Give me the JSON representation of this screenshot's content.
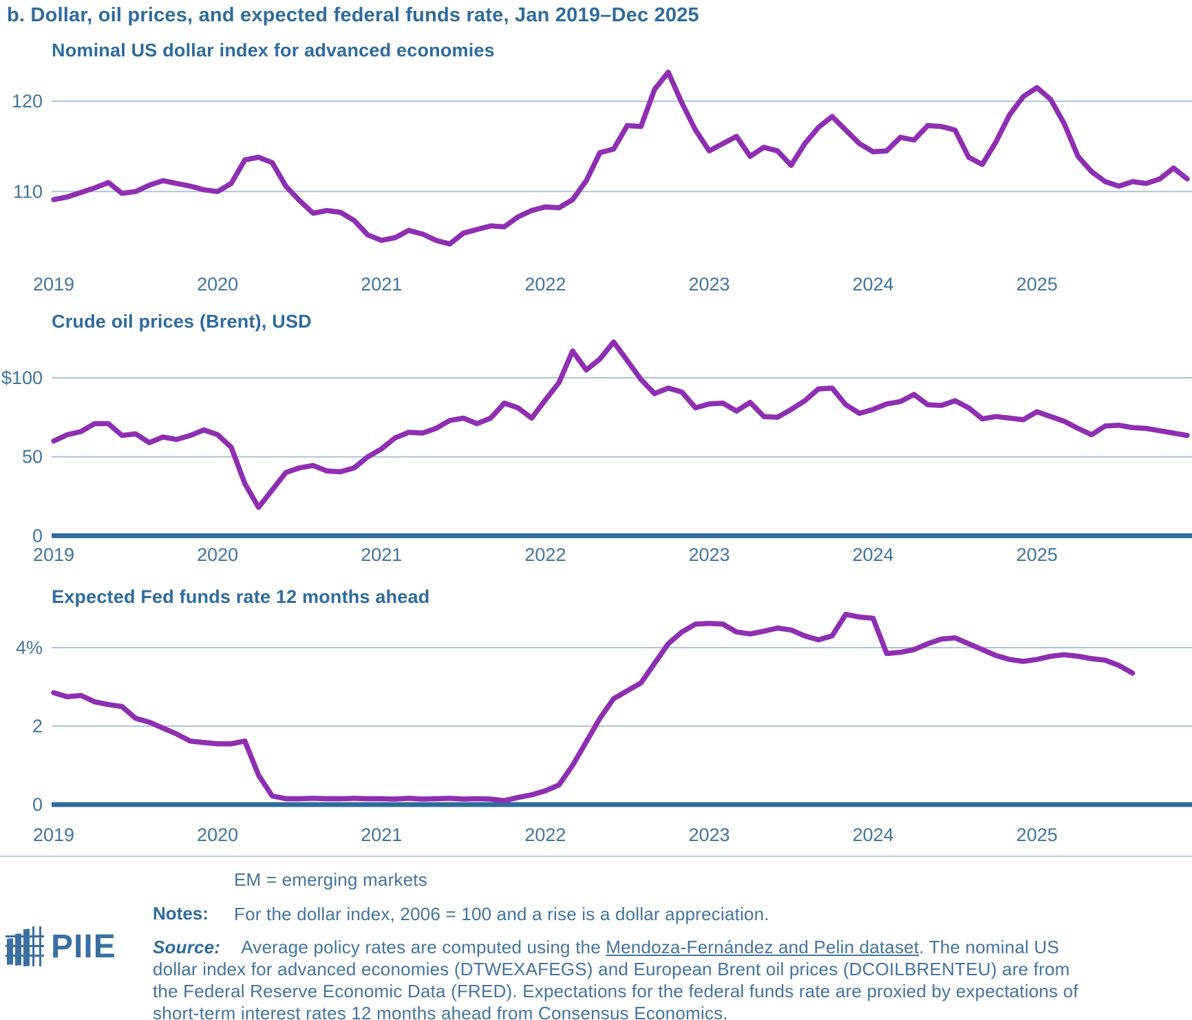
{
  "page_title": "b. Dollar, oil prices, and expected federal funds rate, Jan 2019–Dec 2025",
  "colors": {
    "line_purple": "#8e2fb2",
    "gridline": "#afc4d6",
    "zero_axis": "#2f6b9b",
    "tick_text": "#41749f",
    "title_blue": "#2f6b9d"
  },
  "chart_data": [
    {
      "type": "line",
      "title": "Nominal US dollar index for advanced economies",
      "x_tick_labels": [
        "2019",
        "2020",
        "2021",
        "2022",
        "2023",
        "2024",
        "2025"
      ],
      "x_range": "monthly, Jan 2019 – Dec 2025",
      "y_ticks": [
        {
          "label": "120",
          "value": 120
        },
        {
          "label": "110",
          "value": 110
        }
      ],
      "ylim_shown": [
        104,
        124
      ],
      "grid": "horizontal only",
      "legend": "none",
      "zero_axis": false,
      "values": [
        109.1,
        109.4,
        109.9,
        110.4,
        111.0,
        109.8,
        110.0,
        110.7,
        111.2,
        110.9,
        110.6,
        110.2,
        110.0,
        110.9,
        113.5,
        113.8,
        113.2,
        110.6,
        109.0,
        107.6,
        107.9,
        107.7,
        106.8,
        105.2,
        104.6,
        104.9,
        105.7,
        105.3,
        104.6,
        104.2,
        105.4,
        105.8,
        106.2,
        106.1,
        107.2,
        107.9,
        108.3,
        108.2,
        109.1,
        111.2,
        114.3,
        114.7,
        117.3,
        117.2,
        121.3,
        123.2,
        119.8,
        116.8,
        114.5,
        115.3,
        116.1,
        113.9,
        114.9,
        114.5,
        112.9,
        115.3,
        117.1,
        118.3,
        116.8,
        115.3,
        114.4,
        114.5,
        116.0,
        115.7,
        117.3,
        117.2,
        116.8,
        113.8,
        113.0,
        115.5,
        118.5,
        120.5,
        121.5,
        120.2,
        117.5,
        113.9,
        112.2,
        111.1,
        110.6,
        111.1,
        110.9,
        111.4,
        112.6,
        111.4
      ]
    },
    {
      "type": "line",
      "title": "Crude oil prices (Brent), USD",
      "x_tick_labels": [
        "2019",
        "2020",
        "2021",
        "2022",
        "2023",
        "2024",
        "2025"
      ],
      "x_range": "monthly, Jan 2019 – Dec 2025",
      "y_ticks": [
        {
          "label": "$100",
          "value": 100
        },
        {
          "label": "50",
          "value": 50
        },
        {
          "label": "0",
          "value": 0
        }
      ],
      "ylim_shown": [
        0,
        125
      ],
      "grid": "horizontal only",
      "legend": "none",
      "zero_axis": true,
      "values": [
        60,
        64,
        66,
        71,
        71,
        63.5,
        64.5,
        59,
        62.5,
        61,
        63.5,
        67,
        64,
        56,
        33,
        18,
        29,
        40,
        43,
        44.5,
        41,
        40.5,
        43,
        50,
        55,
        62,
        65.5,
        65,
        68,
        73,
        74.5,
        71,
        74.5,
        84,
        81,
        74.5,
        86,
        97,
        117,
        105,
        112,
        122.7,
        111,
        99,
        90,
        93.5,
        91,
        81,
        83.5,
        84,
        79,
        84.5,
        75.5,
        75,
        80,
        85.5,
        93,
        93.5,
        83,
        77.5,
        80,
        83.5,
        85,
        89.5,
        83,
        82.5,
        85.5,
        81,
        74,
        75.5,
        74.5,
        73.5,
        78.5,
        75.5,
        72.5,
        68,
        64,
        69.5,
        70,
        68.5,
        68,
        66.5,
        65,
        63.5
      ]
    },
    {
      "type": "line",
      "title": "Expected Fed funds rate 12 months ahead",
      "x_tick_labels": [
        "2019",
        "2020",
        "2021",
        "2022",
        "2023",
        "2024",
        "2025"
      ],
      "x_range": "monthly, Jan 2019 – Aug 2025",
      "y_ticks": [
        {
          "label": "4%",
          "value": 4
        },
        {
          "label": "2",
          "value": 2
        },
        {
          "label": "0",
          "value": 0
        }
      ],
      "ylim_shown": [
        0,
        5
      ],
      "grid": "horizontal only",
      "legend": "none",
      "zero_axis": true,
      "values": [
        2.85,
        2.75,
        2.78,
        2.62,
        2.55,
        2.5,
        2.2,
        2.1,
        1.95,
        1.8,
        1.62,
        1.58,
        1.55,
        1.55,
        1.62,
        0.75,
        0.22,
        0.15,
        0.15,
        0.16,
        0.15,
        0.15,
        0.16,
        0.15,
        0.15,
        0.14,
        0.16,
        0.14,
        0.15,
        0.16,
        0.14,
        0.15,
        0.14,
        0.1,
        0.18,
        0.25,
        0.35,
        0.5,
        1.0,
        1.6,
        2.2,
        2.7,
        2.9,
        3.1,
        3.6,
        4.1,
        4.4,
        4.6,
        4.62,
        4.6,
        4.4,
        4.35,
        4.42,
        4.5,
        4.45,
        4.3,
        4.2,
        4.3,
        4.85,
        4.78,
        4.75,
        3.85,
        3.88,
        3.95,
        4.1,
        4.22,
        4.25,
        4.1,
        3.95,
        3.8,
        3.7,
        3.65,
        3.7,
        3.78,
        3.82,
        3.78,
        3.72,
        3.68,
        3.55,
        3.35
      ]
    }
  ],
  "footer": {
    "em_note": "EM = emerging markets",
    "notes_label": "Notes:",
    "notes_text": "For the dollar index, 2006 = 100 and a rise is a dollar appreciation.",
    "source_label": "Source:",
    "source_prefix": "Average policy rates are computed using the ",
    "source_link": "Mendoza-Fernández and Pelin dataset",
    "source_suffix": ". The nominal US dollar index for advanced economies (DTWEXAFEGS) and European Brent oil prices (DCOILBRENTEU) are from the Federal Reserve Economic Data (FRED). Expectations for the federal funds rate are proxied by expectations of short-term interest rates 12 months ahead from Consensus Economics."
  },
  "logo": {
    "text": "PIIE"
  }
}
